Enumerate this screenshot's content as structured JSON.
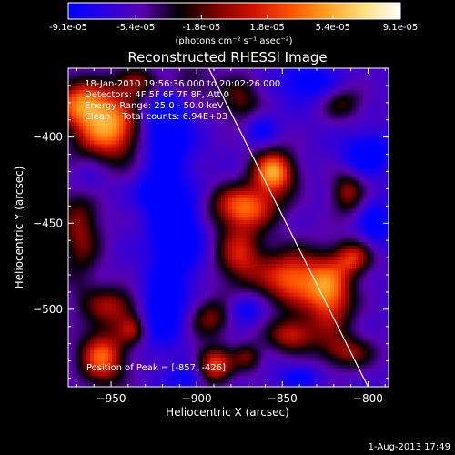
{
  "colorbar": {
    "tick_labels": [
      "-9.1e-05",
      "-5.4e-05",
      "-1.8e-05",
      "1.8e-05",
      "5.4e-05",
      "9.1e-05"
    ],
    "tick_values": [
      -9.1e-05,
      -5.4e-05,
      -1.8e-05,
      1.8e-05,
      5.4e-05,
      9.1e-05
    ],
    "range": [
      -9.1e-05,
      9.1e-05
    ],
    "unit_label": "(photons cm⁻² s⁻¹ asec⁻²)",
    "colors": [
      "#0000ff",
      "#2a00e0",
      "#5a00b0",
      "#000000",
      "#7a0000",
      "#d01000",
      "#ff5000",
      "#ffa020",
      "#ffe080",
      "#ffffff"
    ]
  },
  "chart_data": {
    "type": "heatmap",
    "title": "Reconstructed RHESSI Image",
    "xlabel": "Heliocentric X (arcsec)",
    "ylabel": "Heliocentric Y (arcsec)",
    "xlim": [
      -975,
      -788
    ],
    "ylim": [
      -545,
      -360
    ],
    "x_ticks": [
      -950,
      -900,
      -850,
      -800
    ],
    "x_tick_labels": [
      "−950",
      "−900",
      "−850",
      "−800"
    ],
    "y_ticks": [
      -400,
      -450,
      -500
    ],
    "y_tick_labels": [
      "−400",
      "−450",
      "−500"
    ],
    "annotations": [
      "18-Jan-2010 19:56:36.000 to 20:02:26.000",
      "Detectors: 4F 5F 6F 7F 8F, Att 0",
      "Energy Range: 25.0 - 50.0 keV",
      "Clean    Total counts: 6.94E+03"
    ],
    "peak_label": "Position of Peak = [-857, -426]",
    "peak_position": [
      -857,
      -426
    ],
    "limb_line": [
      [
        -893,
        -360
      ],
      [
        -800,
        -545
      ]
    ],
    "blobs": [
      {
        "x": -950,
        "y": -395,
        "sx": 14,
        "sy": 14,
        "a": 1.0
      },
      {
        "x": -968,
        "y": -380,
        "sx": 12,
        "sy": 10,
        "a": 0.8
      },
      {
        "x": -935,
        "y": -368,
        "sx": 9,
        "sy": 7,
        "a": 0.6
      },
      {
        "x": -968,
        "y": -450,
        "sx": 9,
        "sy": 26,
        "a": 0.6
      },
      {
        "x": -948,
        "y": -498,
        "sx": 12,
        "sy": 8,
        "a": 0.6
      },
      {
        "x": -955,
        "y": -528,
        "sx": 10,
        "sy": 12,
        "a": 0.9
      },
      {
        "x": -937,
        "y": -512,
        "sx": 6,
        "sy": 6,
        "a": 0.5
      },
      {
        "x": -905,
        "y": -368,
        "sx": 10,
        "sy": 9,
        "a": 0.4
      },
      {
        "x": -875,
        "y": -378,
        "sx": 9,
        "sy": 10,
        "a": 0.5
      },
      {
        "x": -855,
        "y": -420,
        "sx": 9,
        "sy": 9,
        "a": 1.05
      },
      {
        "x": -872,
        "y": -440,
        "sx": 15,
        "sy": 9,
        "a": 0.85
      },
      {
        "x": -875,
        "y": -468,
        "sx": 10,
        "sy": 14,
        "a": 0.7
      },
      {
        "x": -845,
        "y": -482,
        "sx": 13,
        "sy": 12,
        "a": 0.9
      },
      {
        "x": -822,
        "y": -492,
        "sx": 10,
        "sy": 16,
        "a": 0.9
      },
      {
        "x": -808,
        "y": -470,
        "sx": 8,
        "sy": 7,
        "a": 0.65
      },
      {
        "x": -812,
        "y": -432,
        "sx": 7,
        "sy": 9,
        "a": 0.6
      },
      {
        "x": -845,
        "y": -515,
        "sx": 10,
        "sy": 7,
        "a": 0.7
      },
      {
        "x": -812,
        "y": -525,
        "sx": 12,
        "sy": 7,
        "a": 0.55
      },
      {
        "x": -892,
        "y": -505,
        "sx": 9,
        "sy": 8,
        "a": 0.55
      },
      {
        "x": -890,
        "y": -533,
        "sx": 8,
        "sy": 8,
        "a": 0.85
      },
      {
        "x": -870,
        "y": -528,
        "sx": 6,
        "sy": 6,
        "a": 0.5
      },
      {
        "x": -815,
        "y": -380,
        "sx": 9,
        "sy": 7,
        "a": 0.45
      },
      {
        "x": -918,
        "y": -395,
        "sx": 10,
        "sy": 18,
        "a": -0.75
      },
      {
        "x": -912,
        "y": -455,
        "sx": 10,
        "sy": 18,
        "a": -0.85
      },
      {
        "x": -925,
        "y": -432,
        "sx": 7,
        "sy": 7,
        "a": -0.5
      },
      {
        "x": -920,
        "y": -500,
        "sx": 9,
        "sy": 14,
        "a": -0.65
      },
      {
        "x": -965,
        "y": -425,
        "sx": 8,
        "sy": 10,
        "a": -0.45
      },
      {
        "x": -800,
        "y": -410,
        "sx": 10,
        "sy": 8,
        "a": -0.6
      },
      {
        "x": -835,
        "y": -368,
        "sx": 12,
        "sy": 8,
        "a": -0.5
      },
      {
        "x": -872,
        "y": -500,
        "sx": 7,
        "sy": 6,
        "a": -0.45
      },
      {
        "x": -862,
        "y": -395,
        "sx": 6,
        "sy": 6,
        "a": -0.4
      },
      {
        "x": -795,
        "y": -450,
        "sx": 7,
        "sy": 9,
        "a": -0.5
      },
      {
        "x": -840,
        "y": -540,
        "sx": 8,
        "sy": 5,
        "a": -0.4
      },
      {
        "x": -905,
        "y": -540,
        "sx": 8,
        "sy": 6,
        "a": -0.45
      }
    ]
  },
  "footer": {
    "date": "1-Aug-2013 17:49"
  }
}
